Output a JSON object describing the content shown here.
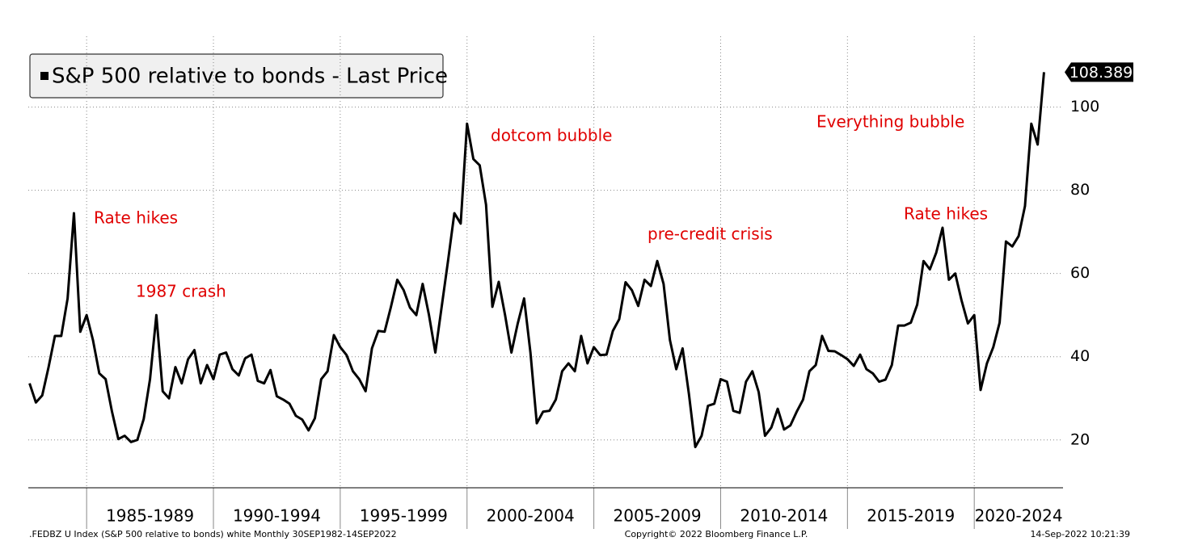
{
  "chart_data": {
    "type": "line",
    "legend": "top-left",
    "grid": true,
    "series": [
      {
        "name": "S&P 500 relative to bonds - Last Price",
        "color": "#000000",
        "values": [
          33.6,
          29,
          30.7,
          37.5,
          45,
          45,
          54,
          74.5,
          46,
          50,
          44,
          36,
          34.6,
          26.8,
          20.2,
          21,
          19.5,
          20,
          25,
          34.6,
          50,
          31.7,
          30,
          37.5,
          33.6,
          39.4,
          41.6,
          33.6,
          38,
          34.6,
          40.5,
          41,
          37,
          35.5,
          39.6,
          40.5,
          34.2,
          33.6,
          36.8,
          30.5,
          29.7,
          28.7,
          25.8,
          24.9,
          22.3,
          25.2,
          34.6,
          36.5,
          45.2,
          42.3,
          40.4,
          36.5,
          34.6,
          31.7,
          42,
          46.2,
          46,
          52,
          58.5,
          56,
          51.8,
          50,
          57.5,
          50,
          41,
          52,
          63,
          74.5,
          72,
          96,
          87.5,
          86,
          76.5,
          52,
          58,
          50,
          41,
          48,
          54,
          41,
          24,
          26.8,
          27,
          29.7,
          36.5,
          38.4,
          36.5,
          45,
          38.4,
          42.3,
          40.4,
          40.5,
          46.2,
          49,
          57.9,
          56,
          52.2,
          58.5,
          57,
          63,
          57.5,
          44,
          37,
          42,
          31,
          18.3,
          21,
          28.2,
          28.7,
          34.6,
          34,
          27,
          26.5,
          34,
          36.5,
          31.5,
          21,
          23,
          27.5,
          22.5,
          23.5,
          26.8,
          29.7,
          36.5,
          38,
          45,
          41.4,
          41.3,
          40.4,
          39.4,
          37.8,
          40.5,
          37,
          36,
          34,
          34.5,
          38,
          47.5,
          47.5,
          48.2,
          52.5,
          63,
          61,
          65,
          71,
          58.5,
          60,
          53.5,
          48,
          50,
          32,
          38.4,
          42.3,
          48.2,
          67.7,
          66.5,
          69,
          76.2,
          96,
          91,
          108.389
        ]
      }
    ],
    "x": [
      1982.75,
      1983,
      1983.25,
      1983.5,
      1983.75,
      1984,
      1984.25,
      1984.5,
      1984.75,
      1985,
      1985.25,
      1985.5,
      1985.75,
      1986,
      1986.25,
      1986.5,
      1986.75,
      1987,
      1987.25,
      1987.5,
      1987.75,
      1988,
      1988.25,
      1988.5,
      1988.75,
      1989,
      1989.25,
      1989.5,
      1989.75,
      1990,
      1990.25,
      1990.5,
      1990.75,
      1991,
      1991.25,
      1991.5,
      1991.75,
      1992,
      1992.25,
      1992.5,
      1992.75,
      1993,
      1993.25,
      1993.5,
      1993.75,
      1994,
      1994.25,
      1994.5,
      1994.75,
      1995,
      1995.25,
      1995.5,
      1995.75,
      1996,
      1996.25,
      1996.5,
      1996.75,
      1997,
      1997.25,
      1997.5,
      1997.75,
      1998,
      1998.25,
      1998.5,
      1998.75,
      1999,
      1999.25,
      1999.5,
      1999.75,
      2000,
      2000.25,
      2000.5,
      2000.75,
      2001,
      2001.25,
      2001.5,
      2001.75,
      2002,
      2002.25,
      2002.5,
      2002.75,
      2003,
      2003.25,
      2003.5,
      2003.75,
      2004,
      2004.25,
      2004.5,
      2004.75,
      2005,
      2005.25,
      2005.5,
      2005.75,
      2006,
      2006.25,
      2006.5,
      2006.75,
      2007,
      2007.25,
      2007.5,
      2007.75,
      2008,
      2008.25,
      2008.5,
      2008.75,
      2009,
      2009.25,
      2009.5,
      2009.75,
      2010,
      2010.25,
      2010.5,
      2010.75,
      2011,
      2011.25,
      2011.5,
      2011.75,
      2012,
      2012.25,
      2012.5,
      2012.75,
      2013,
      2013.25,
      2013.5,
      2013.75,
      2014,
      2014.25,
      2014.5,
      2014.75,
      2015,
      2015.25,
      2015.5,
      2015.75,
      2016,
      2016.25,
      2016.5,
      2016.75,
      2017,
      2017.25,
      2017.5,
      2017.75,
      2018,
      2018.25,
      2018.5,
      2018.75,
      2019,
      2019.25,
      2019.5,
      2019.75,
      2020,
      2020.25,
      2020.5,
      2020.75,
      2021,
      2021.25,
      2021.5,
      2021.75,
      2022,
      2022.25,
      2022.5,
      2022.75
    ],
    "xlim": [
      1982.7,
      2023.5
    ],
    "xticks": [
      {
        "value": 1985,
        "label": "1985-1989"
      },
      {
        "value": 1990,
        "label": "1990-1994"
      },
      {
        "value": 1995,
        "label": "1995-1999"
      },
      {
        "value": 2000,
        "label": "2000-2004"
      },
      {
        "value": 2005,
        "label": "2005-2009"
      },
      {
        "value": 2010,
        "label": "2010-2014"
      },
      {
        "value": 2015,
        "label": "2015-2019"
      },
      {
        "value": 2020,
        "label": "2020-2024"
      }
    ],
    "ylim": [
      8.5,
      117
    ],
    "yticks": [
      20,
      40,
      60,
      80,
      100
    ],
    "annotations": [
      "Rate hikes",
      "1987 crash",
      "dotcom bubble",
      "pre-credit crisis",
      "Everything bubble",
      "Rate hikes"
    ],
    "annotation_color": "#e00000",
    "footer": {
      "source": ".FEDBZ U Index (S&P 500 relative to bonds) white  Monthly 30SEP1982-14SEP2022",
      "copyright": "Copyright© 2022 Bloomberg Finance L.P.",
      "timestamp": "14-Sep-2022 10:21:39"
    }
  }
}
